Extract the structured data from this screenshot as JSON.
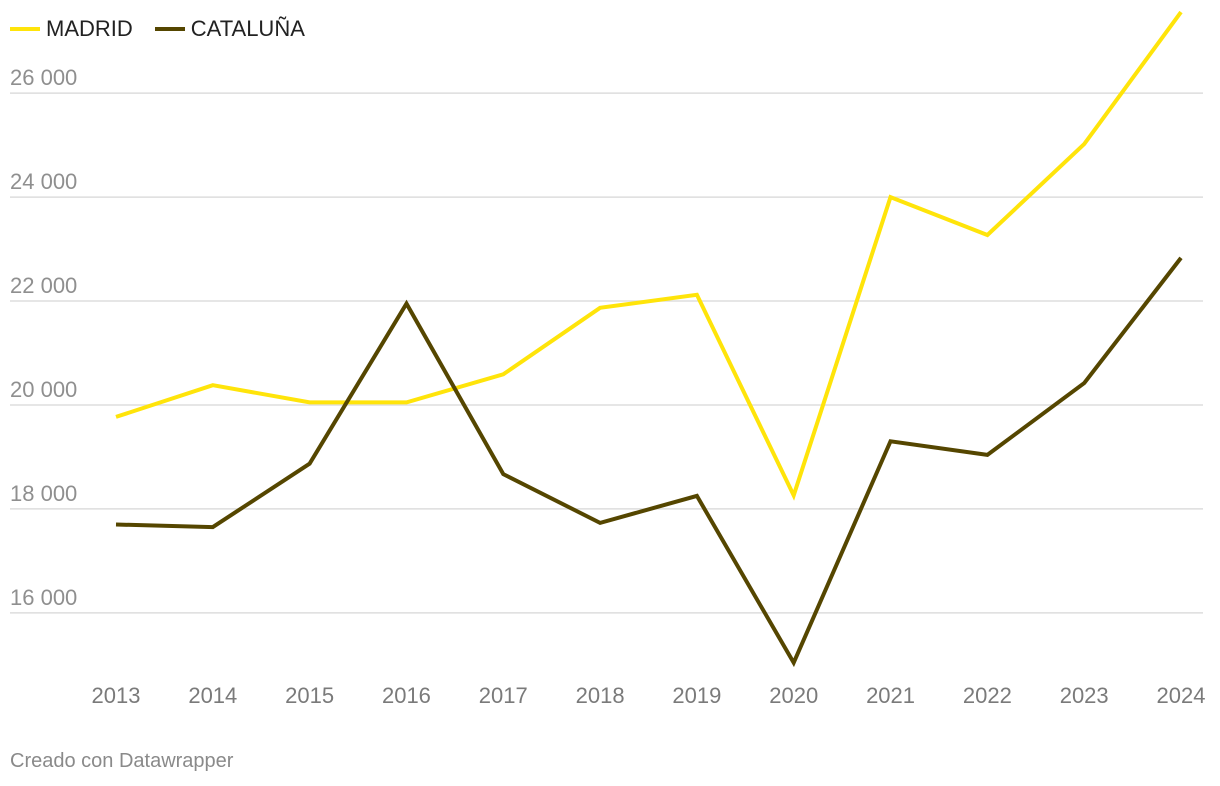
{
  "chart_data": {
    "type": "line",
    "title": "",
    "xlabel": "",
    "ylabel": "",
    "categories": [
      "2013",
      "2014",
      "2015",
      "2016",
      "2017",
      "2018",
      "2019",
      "2020",
      "2021",
      "2022",
      "2023",
      "2024"
    ],
    "y_ticks": [
      16000,
      18000,
      20000,
      22000,
      24000,
      26000
    ],
    "y_tick_labels": [
      "16 000",
      "18 000",
      "20 000",
      "22 000",
      "24 000",
      "26 000"
    ],
    "ylim": [
      14900,
      27600
    ],
    "grid": true,
    "legend": "top-left",
    "series": [
      {
        "name": "MADRID",
        "color": "#ffe40a",
        "values": [
          19770,
          20380,
          20050,
          20050,
          20590,
          21870,
          22120,
          18260,
          24000,
          23270,
          25020,
          27560
        ]
      },
      {
        "name": "CATALUÑA",
        "color": "#554600",
        "values": [
          17700,
          17650,
          18870,
          21950,
          18670,
          17730,
          18250,
          15040,
          19300,
          19040,
          20420,
          22830
        ]
      }
    ]
  },
  "footer": {
    "credit": "Creado con Datawrapper"
  },
  "colors": {
    "grid": "#dddddd",
    "tick_text": "#8f8f8f"
  }
}
